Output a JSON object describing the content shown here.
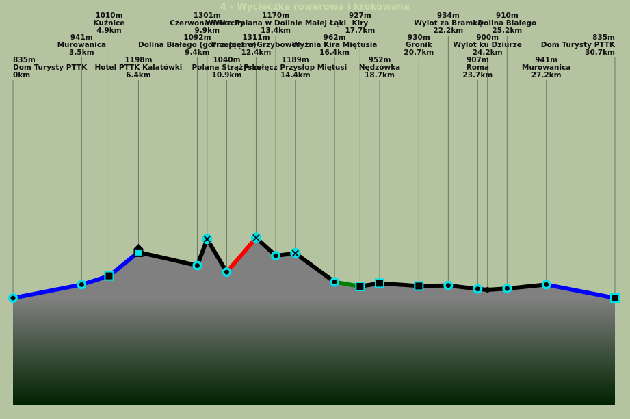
{
  "title": "4 - Wycieczka rowerowa i krokowana",
  "chart_data": {
    "type": "area",
    "title": "4 - Wycieczka rowerowa i krokowana",
    "xlabel": "",
    "ylabel": "",
    "x_unit": "km",
    "y_unit": "m",
    "xlim": [
      0,
      30.7
    ],
    "colors": {
      "background": "#b4c4a0",
      "fill_top": "#808080",
      "fill_bottom": "#002200",
      "bike": "#0000ff",
      "walk": "#000000",
      "red": "#ff0000",
      "green": "#008000",
      "marker": "#00e0e8"
    },
    "points": [
      {
        "name": "Dom Turysty PTTK",
        "km": 0,
        "elev": 835,
        "km_label": "0km",
        "elev_label": "835m",
        "marker": "circle",
        "tier": 3
      },
      {
        "name": "Murowanica",
        "km": 3.5,
        "elev": 941,
        "km_label": "3.5km",
        "elev_label": "941m",
        "marker": "circle",
        "tier": 1
      },
      {
        "name": "Kuźnice",
        "km": 4.9,
        "elev": 1010,
        "km_label": "4.9km",
        "elev_label": "1010m",
        "marker": "square",
        "tier": 0
      },
      {
        "name": "Hotel PTTK Kalatówki",
        "km": 6.4,
        "elev": 1198,
        "km_label": "6.4km",
        "elev_label": "1198m",
        "marker": "hut",
        "tier": 2
      },
      {
        "name": "Dolina Białego (górne piętro)",
        "km": 9.4,
        "elev": 1092,
        "km_label": "9.4km",
        "elev_label": "1092m",
        "marker": "circle",
        "tier": 1
      },
      {
        "name": "Czerwona Wierchy",
        "km": 9.9,
        "elev": 1301,
        "km_label": "9.9km",
        "elev_label": "1301m",
        "marker": "cross",
        "tier": 0
      },
      {
        "name": "Polana Strążyska",
        "km": 10.9,
        "elev": 1040,
        "km_label": "10.9km",
        "elev_label": "1040m",
        "marker": "circle",
        "tier": 2
      },
      {
        "name": "Przełęcz w Grzybowcu",
        "km": 12.4,
        "elev": 1311,
        "km_label": "12.4km",
        "elev_label": "1311m",
        "marker": "cross",
        "tier": 1
      },
      {
        "name": "Wielka Polana w Dolinie Małej Łąki",
        "km": 13.4,
        "elev": 1170,
        "km_label": "13.4km",
        "elev_label": "1170m",
        "marker": "circle",
        "tier": 0
      },
      {
        "name": "Przełęcz Przysłop Miętusi",
        "km": 14.4,
        "elev": 1189,
        "km_label": "14.4km",
        "elev_label": "1189m",
        "marker": "cross",
        "tier": 2
      },
      {
        "name": "Wyżnia Kira Miętusia",
        "km": 16.4,
        "elev": 962,
        "km_label": "16.4km",
        "elev_label": "962m",
        "marker": "circle",
        "tier": 1
      },
      {
        "name": "Kiry",
        "km": 17.7,
        "elev": 927,
        "km_label": "17.7km",
        "elev_label": "927m",
        "marker": "square",
        "tier": 0
      },
      {
        "name": "Nędzówka",
        "km": 18.7,
        "elev": 952,
        "km_label": "18.7km",
        "elev_label": "952m",
        "marker": "square",
        "tier": 2
      },
      {
        "name": "Gronik",
        "km": 20.7,
        "elev": 930,
        "km_label": "20.7km",
        "elev_label": "930m",
        "marker": "square",
        "tier": 1
      },
      {
        "name": "Wylot za Bramką",
        "km": 22.2,
        "elev": 934,
        "km_label": "22.2km",
        "elev_label": "934m",
        "marker": "circle",
        "tier": 0
      },
      {
        "name": "Roma",
        "km": 23.7,
        "elev": 907,
        "km_label": "23.7km",
        "elev_label": "907m",
        "marker": "circle",
        "tier": 2
      },
      {
        "name": "Wylot ku Dziurze",
        "km": 24.2,
        "elev": 900,
        "km_label": "24.2km",
        "elev_label": "900m",
        "marker": "dot",
        "tier": 1
      },
      {
        "name": "Dolina Białego",
        "km": 25.2,
        "elev": 910,
        "km_label": "25.2km",
        "elev_label": "910m",
        "marker": "circle",
        "tier": 0
      },
      {
        "name": "Murowanica",
        "km": 27.2,
        "elev": 941,
        "km_label": "27.2km",
        "elev_label": "941m",
        "marker": "circle",
        "tier": 2
      },
      {
        "name": "Dom Turysty PTTK",
        "km": 30.7,
        "elev": 835,
        "km_label": "30.7km",
        "elev_label": "835m",
        "marker": "square",
        "tier": 1
      }
    ],
    "segment_colors": [
      "bike",
      "bike",
      "bike",
      "walk",
      "walk",
      "walk",
      "red",
      "walk",
      "walk",
      "walk",
      "green",
      "walk",
      "walk",
      "walk",
      "walk",
      "walk",
      "walk",
      "walk",
      "bike"
    ]
  }
}
